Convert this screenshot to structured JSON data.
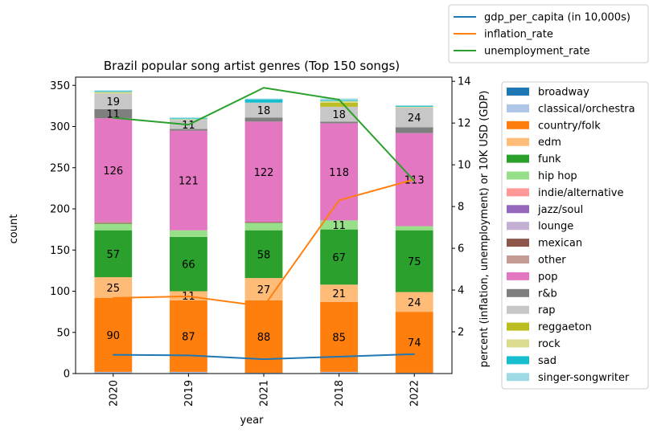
{
  "chart_data": {
    "type": "bar",
    "stacked": true,
    "title": "Brazil popular song artist genres (Top 150 songs)",
    "xlabel": "year",
    "ylabel": "count",
    "ylabel_right": "percent (inflation, unemployment) or 10K USD (GDP)",
    "categories": [
      "2020",
      "2019",
      "2021",
      "2018",
      "2022"
    ],
    "ylim": [
      0,
      360
    ],
    "yticks": [
      0,
      50,
      100,
      150,
      200,
      250,
      300,
      350
    ],
    "ylim_right": [
      0,
      14.2
    ],
    "yticks_right": [
      2,
      4,
      6,
      8,
      10,
      12,
      14
    ],
    "series": [
      {
        "name": "broadway",
        "color": "#1f77b4",
        "values": [
          0,
          0,
          0,
          0,
          0
        ]
      },
      {
        "name": "classical/orchestra",
        "color": "#aec7e8",
        "values": [
          2,
          2,
          1,
          2,
          1
        ]
      },
      {
        "name": "country/folk",
        "color": "#ff7f0e",
        "values": [
          90,
          87,
          88,
          85,
          74
        ]
      },
      {
        "name": "edm",
        "color": "#ffbb78",
        "values": [
          25,
          11,
          27,
          21,
          24
        ]
      },
      {
        "name": "funk",
        "color": "#2ca02c",
        "values": [
          57,
          66,
          58,
          67,
          75
        ]
      },
      {
        "name": "hip hop",
        "color": "#98df8a",
        "values": [
          8,
          8,
          9,
          11,
          5
        ]
      },
      {
        "name": "indie/alternative",
        "color": "#ff9896",
        "values": [
          0,
          0,
          0,
          0,
          0
        ]
      },
      {
        "name": "jazz/soul",
        "color": "#9467bd",
        "values": [
          0,
          0,
          0,
          0,
          0
        ]
      },
      {
        "name": "lounge",
        "color": "#c5b0d5",
        "values": [
          0,
          0,
          0,
          0,
          0
        ]
      },
      {
        "name": "mexican",
        "color": "#8c564b",
        "values": [
          1,
          0,
          1,
          0,
          0
        ]
      },
      {
        "name": "other",
        "color": "#c49c94",
        "values": [
          1,
          0,
          0,
          0,
          0
        ]
      },
      {
        "name": "pop",
        "color": "#e377c2",
        "values": [
          126,
          121,
          122,
          118,
          113
        ]
      },
      {
        "name": "r&b",
        "color": "#7f7f7f",
        "values": [
          11,
          2,
          5,
          2,
          7
        ]
      },
      {
        "name": "rap",
        "color": "#c7c7c7",
        "values": [
          19,
          11,
          18,
          18,
          24
        ]
      },
      {
        "name": "reggaeton",
        "color": "#bcbd22",
        "values": [
          0,
          0,
          0,
          5,
          0
        ]
      },
      {
        "name": "rock",
        "color": "#dbdb8d",
        "values": [
          2,
          1,
          0,
          2,
          1
        ]
      },
      {
        "name": "sad",
        "color": "#17becf",
        "values": [
          1,
          1,
          4,
          1,
          1
        ]
      },
      {
        "name": "singer-songwriter",
        "color": "#9edae5",
        "values": [
          1,
          1,
          1,
          2,
          1
        ]
      }
    ],
    "label_threshold": 10,
    "lines": [
      {
        "name": "gdp_per_capita (in 10,000s)",
        "color": "#1f77b4",
        "values": [
          0.9,
          0.87,
          0.69,
          0.81,
          0.93
        ]
      },
      {
        "name": "inflation_rate",
        "color": "#ff7f0e",
        "values": [
          3.62,
          3.7,
          3.22,
          8.3,
          9.3
        ]
      },
      {
        "name": "unemployment_rate",
        "color": "#2ca02c",
        "values": [
          12.25,
          11.92,
          13.69,
          13.12,
          9.23
        ]
      }
    ],
    "bar_legend_placement": "right",
    "line_legend_placement": "top-right",
    "grid": false
  }
}
